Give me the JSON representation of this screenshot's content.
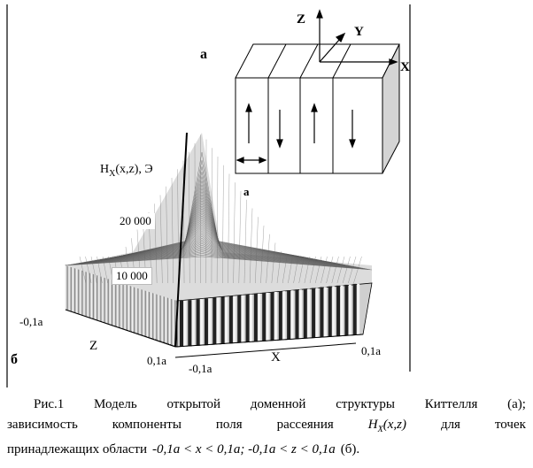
{
  "figure": {
    "panel_a_label": "a",
    "panel_b_label": "б",
    "domain_width_label": "a",
    "axes_3d": {
      "z": "Z",
      "y": "Y",
      "x": "X"
    },
    "plot": {
      "ylabel_prefix": "H",
      "ylabel_sub": "X",
      "ylabel_suffix": "(x,z), Э",
      "tick_20000": "20 000",
      "tick_10000": "10 000",
      "z_axis_label": "Z",
      "x_axis_label": "X",
      "z_min": "-0,1a",
      "z_max": "0,1a",
      "x_min": "-0,1a",
      "x_max": "0,1a"
    }
  },
  "caption": {
    "line1": [
      "Рис.1",
      "Модель",
      "открытой",
      "доменной",
      "структуры",
      "Киттелля",
      "(а);"
    ],
    "line2_words": [
      "зависимость",
      "компоненты",
      "поля",
      "рассеяния"
    ],
    "line2_h": "H",
    "line2_sub": "X",
    "line2_args": "(x,z)",
    "line2_tail": [
      "для",
      "точек"
    ],
    "line3_prefix": "принадлежащих области",
    "line3_range": "-0,1a < x <  0,1a; -0,1a < z < 0,1a",
    "line3_suffix": "(б)."
  }
}
